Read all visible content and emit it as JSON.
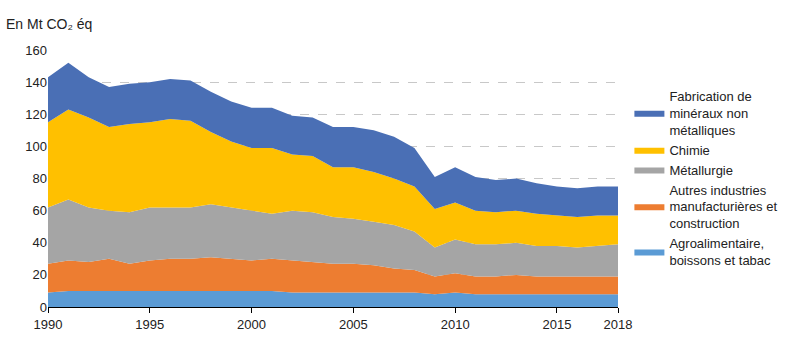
{
  "chart_data": {
    "type": "area",
    "stacked": true,
    "y_label": "En Mt CO₂ éq",
    "x": [
      1990,
      1991,
      1992,
      1993,
      1994,
      1995,
      1996,
      1997,
      1998,
      1999,
      2000,
      2001,
      2002,
      2003,
      2004,
      2005,
      2006,
      2007,
      2008,
      2009,
      2010,
      2011,
      2012,
      2013,
      2014,
      2015,
      2016,
      2017,
      2018
    ],
    "xlim": [
      1990,
      2018
    ],
    "xticks": [
      1990,
      1995,
      2000,
      2005,
      2010,
      2015,
      2018
    ],
    "ylim": [
      0,
      160
    ],
    "yticks": [
      0,
      20,
      40,
      60,
      80,
      100,
      120,
      140,
      160
    ],
    "grid": true,
    "legend": "right",
    "series": [
      {
        "name": "Agroalimentaire, boissons et tabac",
        "color": "#5b9bd5",
        "values": [
          9,
          10,
          10,
          10,
          10,
          10,
          10,
          10,
          10,
          10,
          10,
          10,
          9,
          9,
          9,
          9,
          9,
          9,
          9,
          8,
          9,
          8,
          8,
          8,
          8,
          8,
          8,
          8,
          8
        ]
      },
      {
        "name": "Autres industries manufacturières et construction",
        "color": "#ed7d31",
        "values": [
          18,
          19,
          18,
          20,
          17,
          19,
          20,
          20,
          21,
          20,
          19,
          20,
          20,
          19,
          18,
          18,
          17,
          15,
          14,
          11,
          12,
          11,
          11,
          12,
          11,
          11,
          11,
          11,
          11
        ]
      },
      {
        "name": "Métallurgie",
        "color": "#a5a5a5",
        "values": [
          35,
          38,
          34,
          30,
          32,
          33,
          32,
          32,
          33,
          32,
          31,
          28,
          31,
          31,
          29,
          28,
          27,
          27,
          24,
          18,
          21,
          20,
          20,
          20,
          19,
          19,
          18,
          19,
          20
        ]
      },
      {
        "name": "Chimie",
        "color": "#ffc000",
        "values": [
          53,
          56,
          56,
          52,
          55,
          53,
          55,
          54,
          45,
          41,
          39,
          41,
          35,
          35,
          31,
          32,
          31,
          29,
          28,
          24,
          23,
          21,
          20,
          20,
          20,
          19,
          19,
          19,
          18
        ]
      },
      {
        "name": "Fabrication de minéraux non métalliques",
        "color": "#4a6fb5",
        "values": [
          28,
          29,
          25,
          25,
          25,
          25,
          25,
          25,
          25,
          25,
          25,
          25,
          24,
          24,
          25,
          25,
          26,
          26,
          24,
          20,
          22,
          21,
          20,
          20,
          19,
          18,
          18,
          18,
          18
        ]
      }
    ]
  }
}
